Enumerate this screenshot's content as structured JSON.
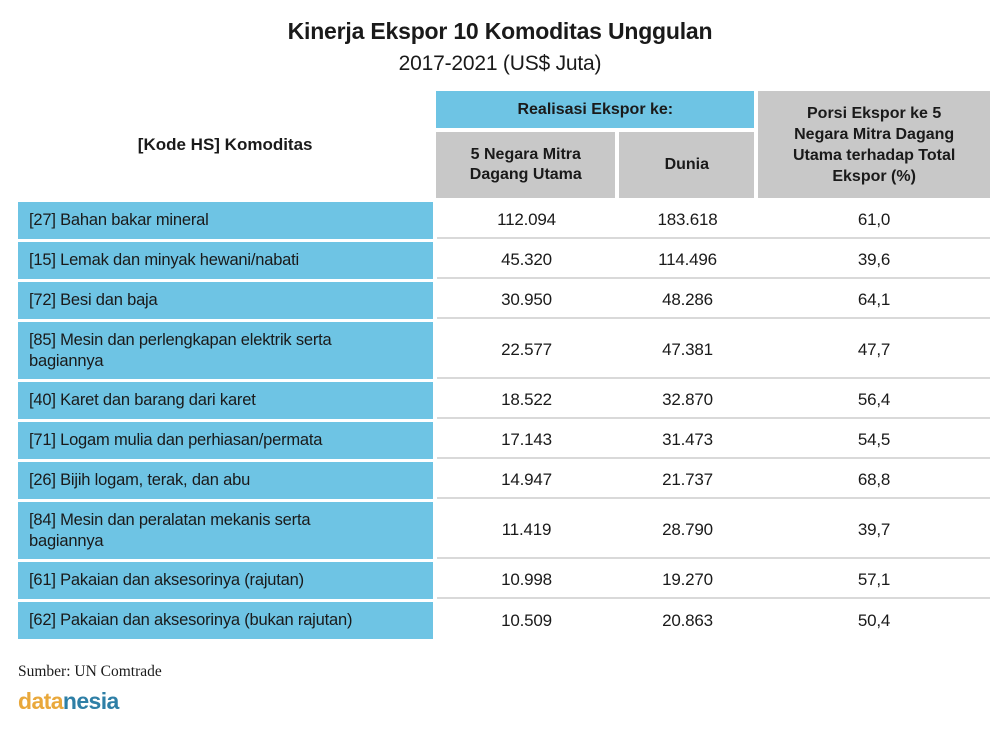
{
  "title": "Kinerja Ekspor 10 Komoditas Unggulan",
  "subtitle": "2017-2021 (US$ Juta)",
  "table": {
    "col_header_left": "[Kode HS] Komoditas",
    "group_header": "Realisasi Ekspor ke:",
    "col_partner5": "5 Negara Mitra Dagang Utama",
    "col_world": "Dunia",
    "col_share": "Porsi Ekspor ke 5 Negara Mitra Dagang Utama terhadap Total Ekspor (%)",
    "rows": [
      {
        "commodity": "[27] Bahan bakar mineral",
        "partner5": "112.094",
        "world": "183.618",
        "share": "61,0"
      },
      {
        "commodity": "[15] Lemak dan minyak hewani/nabati",
        "partner5": "45.320",
        "world": "114.496",
        "share": "39,6"
      },
      {
        "commodity": "[72] Besi dan baja",
        "partner5": "30.950",
        "world": "48.286",
        "share": "64,1"
      },
      {
        "commodity": "[85] Mesin dan perlengkapan elektrik serta\nbagiannya",
        "partner5": "22.577",
        "world": "47.381",
        "share": "47,7"
      },
      {
        "commodity": "[40] Karet dan barang dari karet",
        "partner5": "18.522",
        "world": "32.870",
        "share": "56,4"
      },
      {
        "commodity": "[71] Logam mulia dan perhiasan/permata",
        "partner5": "17.143",
        "world": "31.473",
        "share": "54,5"
      },
      {
        "commodity": "[26] Bijih logam, terak, dan abu",
        "partner5": "14.947",
        "world": "21.737",
        "share": "68,8"
      },
      {
        "commodity": "[84] Mesin dan peralatan mekanis serta\nbagiannya",
        "partner5": "11.419",
        "world": "28.790",
        "share": "39,7"
      },
      {
        "commodity": "[61] Pakaian dan aksesorinya (rajutan)",
        "partner5": "10.998",
        "world": "19.270",
        "share": "57,1"
      },
      {
        "commodity": "[62] Pakaian dan aksesorinya (bukan rajutan)",
        "partner5": "10.509",
        "world": "20.863",
        "share": "50,4"
      }
    ]
  },
  "source": "Sumber: UN Comtrade",
  "logo": {
    "part1": "data",
    "part2": "nesia"
  },
  "colors": {
    "blue": "#6EC4E4",
    "gray": "#C8C8C8",
    "separator": "#D9D9D9",
    "logo_orange": "#E9A83B",
    "logo_blue": "#2E7FA6"
  },
  "chart_data": {
    "type": "table",
    "title": "Kinerja Ekspor 10 Komoditas Unggulan 2017-2021 (US$ Juta)",
    "columns": [
      "[Kode HS] Komoditas",
      "Realisasi Ekspor ke: 5 Negara Mitra Dagang Utama",
      "Realisasi Ekspor ke: Dunia",
      "Porsi Ekspor ke 5 Negara Mitra Dagang Utama terhadap Total Ekspor (%)"
    ],
    "rows": [
      [
        "[27] Bahan bakar mineral",
        112094,
        183618,
        61.0
      ],
      [
        "[15] Lemak dan minyak hewani/nabati",
        45320,
        114496,
        39.6
      ],
      [
        "[72] Besi dan baja",
        30950,
        48286,
        64.1
      ],
      [
        "[85] Mesin dan perlengkapan elektrik serta bagiannya",
        22577,
        47381,
        47.7
      ],
      [
        "[40] Karet dan barang dari karet",
        18522,
        32870,
        56.4
      ],
      [
        "[71] Logam mulia dan perhiasan/permata",
        17143,
        31473,
        54.5
      ],
      [
        "[26] Bijih logam, terak, dan abu",
        14947,
        21737,
        68.8
      ],
      [
        "[84] Mesin dan peralatan mekanis serta bagiannya",
        11419,
        28790,
        39.7
      ],
      [
        "[61] Pakaian dan aksesorinya (rajutan)",
        10998,
        19270,
        57.1
      ],
      [
        "[62] Pakaian dan aksesorinya (bukan rajutan)",
        10509,
        20863,
        50.4
      ]
    ],
    "units": "US$ Juta",
    "source": "UN Comtrade"
  }
}
